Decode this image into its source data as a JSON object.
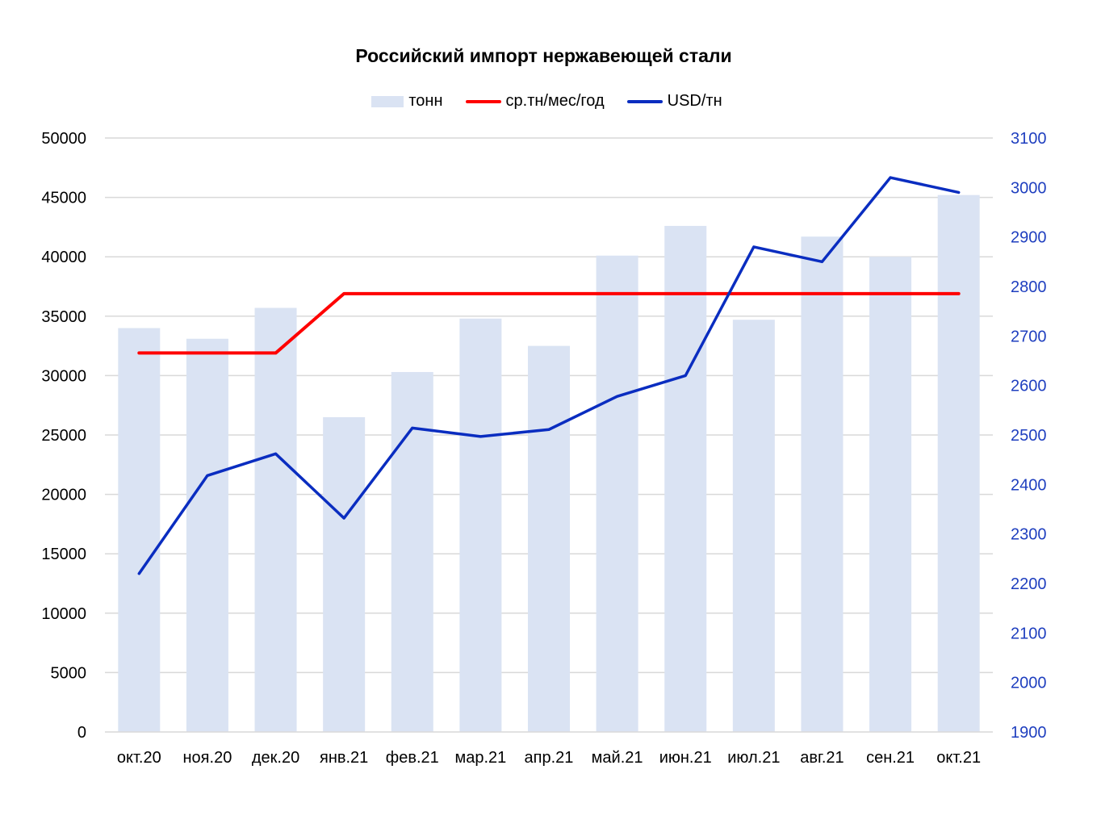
{
  "chart_data": {
    "type": "bar",
    "title": "Российский импорт нержавеющей стали",
    "categories": [
      "окт.20",
      "ноя.20",
      "дек.20",
      "янв.21",
      "фев.21",
      "мар.21",
      "апр.21",
      "май.21",
      "июн.21",
      "июл.21",
      "авг.21",
      "сен.21",
      "окт.21"
    ],
    "series": [
      {
        "name": "тонн",
        "type": "bar",
        "axis": "left",
        "color": "#dae3f3",
        "values": [
          34000,
          33100,
          35700,
          26500,
          30300,
          34800,
          32500,
          40100,
          42600,
          34700,
          41700,
          40000,
          45200
        ]
      },
      {
        "name": "ср.тн/мес/год",
        "type": "line",
        "axis": "left",
        "color": "#ff0000",
        "values": [
          31900,
          31900,
          31900,
          36900,
          36900,
          36900,
          36900,
          36900,
          36900,
          36900,
          36900,
          36900,
          36900
        ]
      },
      {
        "name": "USD/тн",
        "type": "line",
        "axis": "right",
        "color": "#0a2dc0",
        "values": [
          2220,
          2418,
          2462,
          2332,
          2514,
          2497,
          2511,
          2578,
          2620,
          2880,
          2850,
          3020,
          2990
        ]
      }
    ],
    "y_left": {
      "min": 0,
      "max": 50000,
      "ticks": [
        0,
        5000,
        10000,
        15000,
        20000,
        25000,
        30000,
        35000,
        40000,
        45000,
        50000
      ]
    },
    "y_right": {
      "min": 1900,
      "max": 3100,
      "ticks": [
        1900,
        2000,
        2100,
        2200,
        2300,
        2400,
        2500,
        2600,
        2700,
        2800,
        2900,
        3000,
        3100
      ],
      "color": "#1f3fbf"
    },
    "grid": true,
    "legend_position": "top-center"
  }
}
